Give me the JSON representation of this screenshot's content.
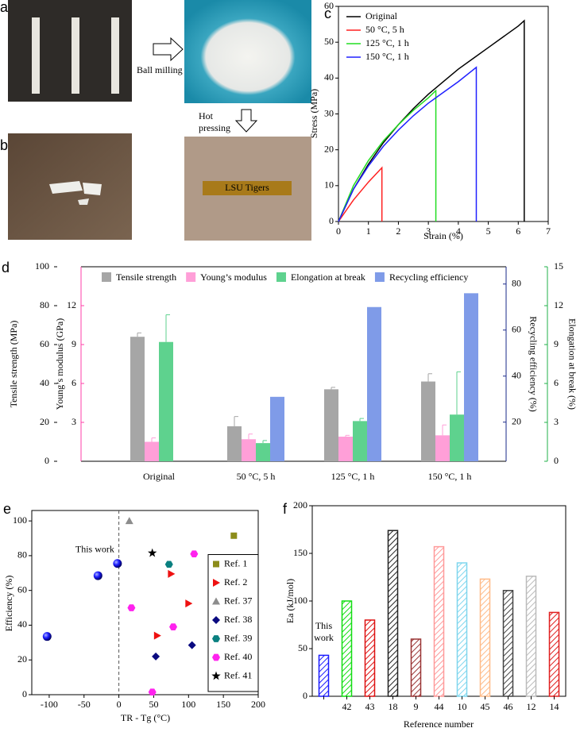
{
  "figure": {
    "panel_labels": [
      "a",
      "b"
    ],
    "ball_milling": "Ball milling",
    "hot_pressing": [
      "Hot",
      "pressing"
    ],
    "sample_text": "LSU Tigers"
  },
  "chart_data": [
    {
      "type": "line",
      "label": "c",
      "xlabel": "Strain (%)",
      "ylabel": "Stress (MPa)",
      "xlim": [
        0,
        7
      ],
      "xticks": [
        0,
        1,
        2,
        3,
        4,
        5,
        6,
        7
      ],
      "ylim": [
        0,
        60
      ],
      "yticks": [
        0,
        10,
        20,
        30,
        40,
        50,
        60
      ],
      "legend": "upper left",
      "series": [
        {
          "name": "Original",
          "color": "#000000",
          "x": [
            0,
            0.5,
            1,
            1.5,
            2,
            2.5,
            3,
            3.5,
            4,
            4.5,
            5,
            5.5,
            6,
            6.2,
            6.2
          ],
          "values": [
            0,
            9,
            16,
            22,
            27,
            31.5,
            35.5,
            39,
            42.5,
            45.5,
            48.5,
            51.5,
            54.5,
            56,
            0
          ]
        },
        {
          "name": "50 °C, 5 h",
          "color": "#ff2020",
          "x": [
            0,
            0.5,
            1,
            1.45,
            1.45
          ],
          "values": [
            0,
            6,
            11,
            15,
            0
          ]
        },
        {
          "name": "125 °C, 1 h",
          "color": "#22dd22",
          "x": [
            0,
            0.5,
            1,
            1.5,
            2,
            2.5,
            3,
            3.25,
            3.25
          ],
          "values": [
            0,
            10,
            17,
            22.5,
            27,
            31,
            34.5,
            36.5,
            0
          ]
        },
        {
          "name": "150 °C, 1 h",
          "color": "#2020ff",
          "x": [
            0,
            0.5,
            1,
            1.5,
            2,
            2.5,
            3,
            3.5,
            4,
            4.6,
            4.6
          ],
          "values": [
            0,
            9,
            15.5,
            21,
            25.5,
            29.5,
            33,
            36,
            39,
            43,
            0
          ]
        }
      ]
    },
    {
      "type": "bar",
      "label": "d",
      "categories": [
        "Original",
        "50 °C, 5 h",
        "125 °C, 1 h",
        "150 °C, 1 h"
      ],
      "ylabel": "Tensile strength (MPa)",
      "ylim": [
        0,
        100
      ],
      "yticks": [
        0,
        20,
        40,
        60,
        80,
        100
      ],
      "y2label": "Recycling efficiency (%)",
      "y2lim": [
        3,
        87.5
      ],
      "y2ticks": [
        20,
        40,
        60,
        80
      ],
      "y3label": "Young’s modulus (GPa)",
      "y3lim": [
        0,
        15
      ],
      "y3ticks": [
        3,
        6,
        9,
        12
      ],
      "y4label": "Elongation at break (%)",
      "y4lim": [
        0,
        15
      ],
      "y4ticks": [
        0,
        3,
        6,
        9,
        12,
        15
      ],
      "legend": "top",
      "series": [
        {
          "name": "Tensile strength",
          "color": "#a6a6a6",
          "axis": "y",
          "axis_color": "#000000",
          "values": [
            64,
            18,
            37,
            41
          ],
          "errors": [
            2,
            5,
            1,
            4
          ]
        },
        {
          "name": "Young’s modulus",
          "color": "#ff9fd8",
          "axis": "y3",
          "axis_color": "#ff3fa8",
          "values": [
            1.5,
            1.7,
            1.9,
            2.0
          ],
          "errors": [
            0.3,
            0.4,
            0.1,
            0.8
          ]
        },
        {
          "name": "Elongation at break",
          "color": "#5ed28e",
          "axis": "y4",
          "axis_color": "#22b04a",
          "values": [
            9.2,
            1.4,
            3.1,
            3.6
          ],
          "errors": [
            2.1,
            0.2,
            0.2,
            3.3
          ]
        },
        {
          "name": "Recycling efficiency",
          "color": "#7f9be8",
          "axis": "y2",
          "axis_color": "#1a2a8a",
          "values": [
            null,
            31,
            70,
            76
          ]
        }
      ]
    },
    {
      "type": "scatter",
      "label": "e",
      "xlabel": "TR - Tg (°C)",
      "ylabel": "Efficiency (%)",
      "xlim": [
        -125,
        200
      ],
      "xticks": [
        -100,
        -50,
        0,
        50,
        100,
        150,
        200
      ],
      "ylim": [
        0,
        106
      ],
      "yticks": [
        0,
        20,
        40,
        60,
        80,
        100
      ],
      "reference_line_x": 0,
      "annotation": "This work",
      "legend": "lower right",
      "series": [
        {
          "color": "#1a1aff",
          "marker": "sphere",
          "x": [
            -103,
            -30,
            -2
          ],
          "values": [
            33.5,
            68.5,
            75.5
          ]
        },
        {
          "name": "Ref. 1",
          "color": "#8c8c1a",
          "marker": "square",
          "x": [
            165
          ],
          "values": [
            91.5
          ]
        },
        {
          "name": "Ref. 2",
          "color": "#ee1111",
          "marker": "triangle-right",
          "x": [
            75,
            100,
            55
          ],
          "values": [
            69.5,
            52.5,
            34
          ]
        },
        {
          "name": "Ref. 37",
          "color": "#8c8c8c",
          "marker": "triangle-up",
          "x": [
            15
          ],
          "values": [
            100
          ]
        },
        {
          "name": "Ref. 38",
          "color": "#0a0a80",
          "marker": "diamond",
          "x": [
            53,
            105
          ],
          "values": [
            22,
            28.5
          ]
        },
        {
          "name": "Ref. 39",
          "color": "#0a8080",
          "marker": "hexagon",
          "x": [
            72
          ],
          "values": [
            75
          ]
        },
        {
          "name": "Ref. 40",
          "color": "#ff22ee",
          "marker": "hexagon",
          "x": [
            108,
            18,
            78,
            48
          ],
          "values": [
            81,
            50,
            39,
            1.5
          ]
        },
        {
          "name": "Ref. 41",
          "color": "#000000",
          "marker": "star",
          "x": [
            48
          ],
          "values": [
            81.5
          ]
        }
      ]
    },
    {
      "type": "bar",
      "label": "f",
      "xlabel": "Reference number",
      "ylabel": "Ea (kJ/mol)",
      "hatch": true,
      "annotation": [
        "This",
        "work"
      ],
      "categories": [
        null,
        "42",
        "43",
        "18",
        "9",
        "44",
        "10",
        "45",
        "46",
        "12",
        "14"
      ],
      "values": [
        43,
        100,
        80,
        174,
        60,
        157,
        140,
        123,
        111,
        126,
        88
      ],
      "colors": [
        "#1a1aff",
        "#11dd11",
        "#dd1111",
        "#222222",
        "#993333",
        "#ff9999",
        "#7fd6ee",
        "#ffbb88",
        "#444444",
        "#bbbbbb",
        "#e02020"
      ],
      "ylim": [
        0,
        200
      ],
      "yticks": [
        0,
        50,
        100,
        150,
        200
      ]
    }
  ]
}
